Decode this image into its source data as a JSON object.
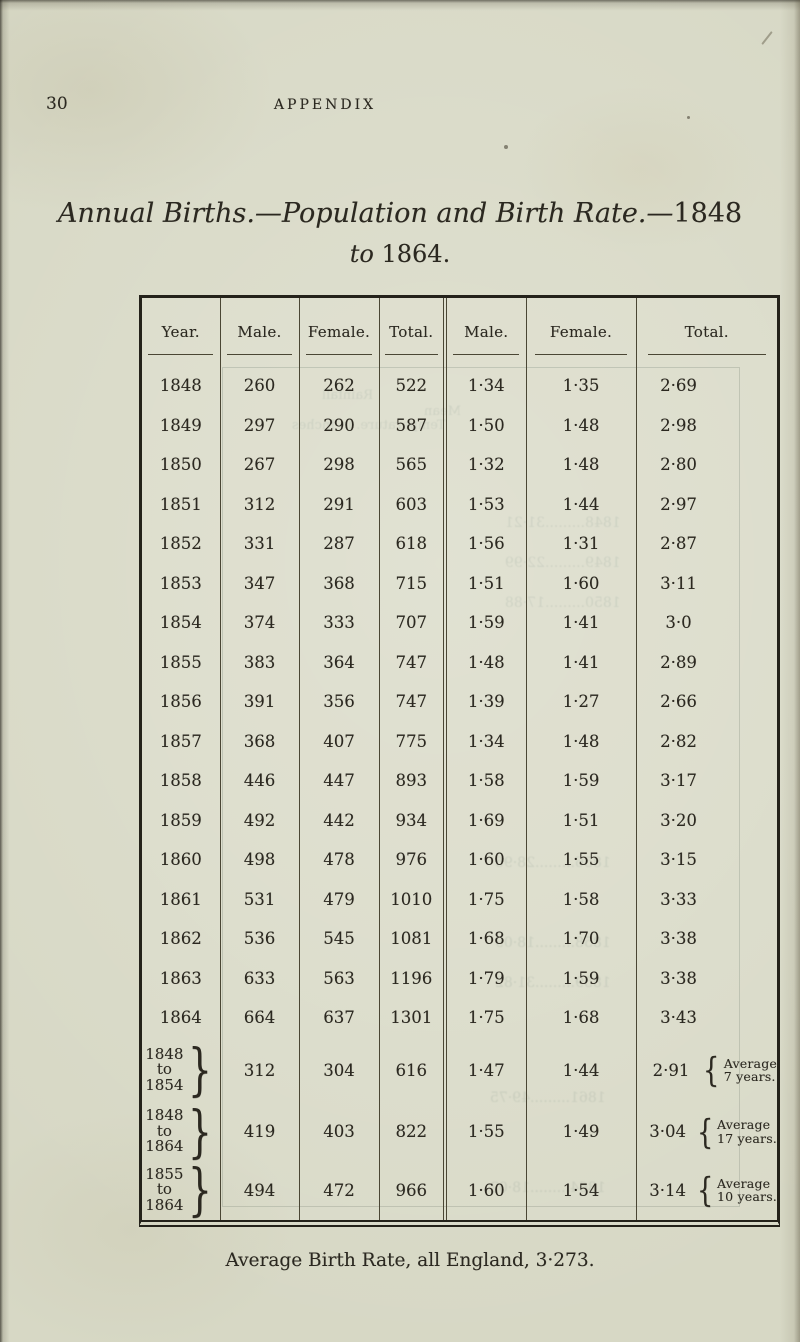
{
  "page": {
    "number": "30",
    "running_head": "APPENDIX"
  },
  "title": {
    "line1_italic": "Annual Births.—Population and Birth Rate.—",
    "line1_roman": "1848",
    "line2_italic": "to",
    "line2_roman": "1864."
  },
  "table": {
    "headers": [
      "Year.",
      "Male.",
      "Female.",
      "Total.",
      "Male.",
      "Female.",
      "Total."
    ],
    "rows": [
      [
        "1848",
        "260",
        "262",
        "522",
        "1·34",
        "1·35",
        "2·69"
      ],
      [
        "1849",
        "297",
        "290",
        "587",
        "1·50",
        "1·48",
        "2·98"
      ],
      [
        "1850",
        "267",
        "298",
        "565",
        "1·32",
        "1·48",
        "2·80"
      ],
      [
        "1851",
        "312",
        "291",
        "603",
        "1·53",
        "1·44",
        "2·97"
      ],
      [
        "1852",
        "331",
        "287",
        "618",
        "1·56",
        "1·31",
        "2·87"
      ],
      [
        "1853",
        "347",
        "368",
        "715",
        "1·51",
        "1·60",
        "3·11"
      ],
      [
        "1854",
        "374",
        "333",
        "707",
        "1·59",
        "1·41",
        "3·0"
      ],
      [
        "1855",
        "383",
        "364",
        "747",
        "1·48",
        "1·41",
        "2·89"
      ],
      [
        "1856",
        "391",
        "356",
        "747",
        "1·39",
        "1·27",
        "2·66"
      ],
      [
        "1857",
        "368",
        "407",
        "775",
        "1·34",
        "1·48",
        "2·82"
      ],
      [
        "1858",
        "446",
        "447",
        "893",
        "1·58",
        "1·59",
        "3·17"
      ],
      [
        "1859",
        "492",
        "442",
        "934",
        "1·69",
        "1·51",
        "3·20"
      ],
      [
        "1860",
        "498",
        "478",
        "976",
        "1·60",
        "1·55",
        "3·15"
      ],
      [
        "1861",
        "531",
        "479",
        "1010",
        "1·75",
        "1·58",
        "3·33"
      ],
      [
        "1862",
        "536",
        "545",
        "1081",
        "1·68",
        "1·70",
        "3·38"
      ],
      [
        "1863",
        "633",
        "563",
        "1196",
        "1·79",
        "1·59",
        "3·38"
      ],
      [
        "1864",
        "664",
        "637",
        "1301",
        "1·75",
        "1·68",
        "3·43"
      ]
    ],
    "summary_rows": [
      {
        "years": [
          "1848",
          "to",
          "1854"
        ],
        "cells": [
          "312",
          "304",
          "616",
          "1·47",
          "1·44",
          "2·91"
        ],
        "note": [
          "Average",
          "7 years."
        ]
      },
      {
        "years": [
          "1848",
          "to",
          "1864"
        ],
        "cells": [
          "419",
          "403",
          "822",
          "1·55",
          "1·49",
          "3·04"
        ],
        "note": [
          "Average",
          "17 years."
        ]
      },
      {
        "years": [
          "1855",
          "to",
          "1864"
        ],
        "cells": [
          "494",
          "472",
          "966",
          "1·60",
          "1·54",
          "3·14"
        ],
        "note": [
          "Average",
          "10 years."
        ]
      }
    ]
  },
  "footer": "Average Birth Rate, all England, 3·273.",
  "ghost_showthrough": [
    "Rainfall",
    "Mean",
    "Temperature. in Inches",
    "1848.........31·21",
    "1849.........22·99",
    "1850.........17·88",
    "1856.........28·96",
    "1858.........18·09",
    "1859.........31·82",
    "1861.........49·75",
    "1864.........18·02"
  ],
  "colors": {
    "paper": "#d7d8c5",
    "ink": "#2b2820",
    "rule": "#4a4634"
  }
}
